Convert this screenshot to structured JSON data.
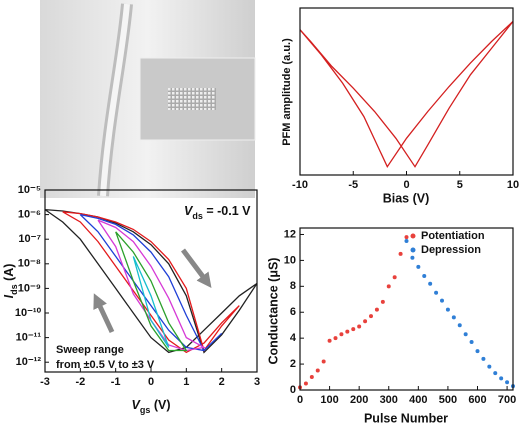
{
  "chart_data": [
    {
      "type": "line",
      "xlabel": "Bias (V)",
      "ylabel": "PFM amplitude (a.u.)",
      "xlim": [
        -10,
        10
      ],
      "xticks": [
        -10,
        -5,
        0,
        5,
        10
      ],
      "ylim": [
        0,
        1
      ],
      "series": [
        {
          "color": "#d42020",
          "x": [
            -10,
            -8,
            -6,
            -4,
            -1.8,
            0,
            2,
            4,
            6,
            8,
            10,
            8,
            6,
            4,
            2,
            0.8,
            -1,
            -3,
            -5,
            -7,
            -9,
            -10
          ],
          "values": [
            0.87,
            0.72,
            0.55,
            0.35,
            0.05,
            0.22,
            0.38,
            0.53,
            0.67,
            0.8,
            0.92,
            0.76,
            0.6,
            0.4,
            0.18,
            0.05,
            0.22,
            0.38,
            0.52,
            0.65,
            0.8,
            0.87
          ]
        }
      ]
    },
    {
      "type": "line",
      "log_y": true,
      "xlabel": {
        "symbol": "V",
        "subscript": "gs",
        "unit": " (V)"
      },
      "ylabel": {
        "symbol": "I",
        "subscript": "ds",
        "unit": " (A)"
      },
      "annotation": {
        "symbol": "V",
        "subscript": "ds",
        "text": " = -0.1 V"
      },
      "note": [
        "Sweep range",
        "from ±0.5 V to ±3 V"
      ],
      "xlim": [
        -3,
        3
      ],
      "xticks": [
        -3,
        -2,
        -1,
        0,
        1,
        2,
        3
      ],
      "ylim": [
        4e-13,
        1e-05
      ],
      "yticks": [
        {
          "value": 1e-05,
          "label": "10⁻⁵"
        },
        {
          "value": 1e-06,
          "label": "10⁻⁶"
        },
        {
          "value": 1e-07,
          "label": "10⁻⁷"
        },
        {
          "value": 1e-08,
          "label": "10⁻⁸"
        },
        {
          "value": 1e-09,
          "label": "10⁻⁹"
        },
        {
          "value": 1e-10,
          "label": "10⁻¹⁰"
        },
        {
          "value": 1e-11,
          "label": "10⁻¹¹"
        },
        {
          "value": 1e-12,
          "label": "10⁻¹²"
        }
      ],
      "series": [
        {
          "color": "#222222",
          "x": [
            -3,
            -2.5,
            -2,
            -1.5,
            -1,
            -0.5,
            0,
            0.5,
            1,
            1.5,
            2,
            2.5,
            3,
            2.5,
            2,
            1.5,
            1,
            0.5,
            0,
            -0.5,
            -1,
            -1.5,
            -2,
            -2.5,
            -3
          ],
          "values": [
            1.6e-06,
            1.4e-06,
            1.1e-06,
            8e-07,
            4.5e-07,
            2e-07,
            6e-08,
            1e-08,
            5e-10,
            2.5e-12,
            1.3e-11,
            1.3e-10,
            1.6e-09,
            5e-10,
            1e-10,
            2e-11,
            4e-12,
            2.5e-12,
            1e-11,
            1e-10,
            1e-09,
            1e-08,
            1e-07,
            5e-07,
            1.6e-06
          ]
        },
        {
          "color": "#e31a1c",
          "x": [
            -2.5,
            -2,
            -1.5,
            -1,
            -0.5,
            0,
            0.5,
            1,
            1.5,
            2,
            2.5,
            2,
            1.5,
            1,
            0.5,
            0,
            -0.5,
            -1,
            -1.5,
            -2,
            -2.5
          ],
          "values": [
            1.3e-06,
            1.1e-06,
            8e-07,
            5e-07,
            2.5e-07,
            8e-08,
            1.5e-08,
            1e-09,
            3e-12,
            3e-11,
            2e-10,
            4e-11,
            6e-12,
            2.5e-12,
            8e-12,
            8e-11,
            8e-10,
            8e-09,
            8e-08,
            5e-07,
            1.3e-06
          ]
        },
        {
          "color": "#1f3fd6",
          "x": [
            -2,
            -1.5,
            -1,
            -0.5,
            0,
            0.5,
            1,
            1.5,
            2,
            1.5,
            1,
            0.5,
            0,
            -0.5,
            -1,
            -1.5,
            -2
          ],
          "values": [
            1e-06,
            7e-07,
            4e-07,
            1.5e-07,
            3e-08,
            3e-09,
            8e-11,
            3e-12,
            1.5e-11,
            3e-12,
            4e-12,
            2e-11,
            2e-10,
            2e-09,
            2e-08,
            2e-07,
            1e-06
          ]
        },
        {
          "color": "#d63ad6",
          "x": [
            -1.5,
            -1,
            -0.5,
            0,
            0.5,
            1,
            1.5,
            1,
            0.5,
            0,
            -0.5,
            -1,
            -1.5
          ],
          "values": [
            6e-07,
            3e-07,
            8e-08,
            8e-09,
            4e-10,
            1e-11,
            4e-12,
            3e-12,
            5e-12,
            5e-11,
            6e-10,
            5e-08,
            6e-07
          ]
        },
        {
          "color": "#2ca02c",
          "x": [
            -1,
            -0.5,
            0,
            0.5,
            1,
            0.5,
            0,
            -0.5,
            -1
          ],
          "values": [
            2e-07,
            3e-08,
            2e-09,
            4e-11,
            3e-12,
            3e-12,
            3e-11,
            2e-09,
            2e-07
          ]
        },
        {
          "color": "#17becf",
          "x": [
            -0.5,
            0,
            0.5,
            0,
            -0.5
          ],
          "values": [
            2e-08,
            5e-10,
            4e-12,
            5e-11,
            2e-08
          ]
        }
      ]
    },
    {
      "type": "scatter",
      "xlabel": "Pulse Number",
      "ylabel": "Conductance (μS)",
      "xlim": [
        0,
        720
      ],
      "xticks": [
        0,
        100,
        200,
        300,
        400,
        500,
        600,
        700
      ],
      "ylim": [
        0,
        12.5
      ],
      "yticks": [
        0,
        2,
        4,
        6,
        8,
        10,
        12
      ],
      "legend": "upper right",
      "series": [
        {
          "name": "Potentiation",
          "color": "#e8413c",
          "x": [
            0,
            20,
            40,
            60,
            80,
            100,
            120,
            140,
            160,
            180,
            200,
            220,
            240,
            260,
            280,
            300,
            320,
            340,
            360
          ],
          "values": [
            0.2,
            0.5,
            1.0,
            1.5,
            2.2,
            3.8,
            4.0,
            4.3,
            4.5,
            4.7,
            4.9,
            5.3,
            5.7,
            6.2,
            6.8,
            8.0,
            8.7,
            10.5,
            11.8
          ]
        },
        {
          "name": "Depression",
          "color": "#2f7fd6",
          "x": [
            360,
            380,
            400,
            420,
            440,
            460,
            480,
            500,
            520,
            540,
            560,
            580,
            600,
            620,
            640,
            660,
            680,
            700,
            720
          ],
          "values": [
            11.5,
            10.2,
            9.5,
            8.8,
            8.2,
            7.5,
            6.9,
            6.2,
            5.6,
            5.0,
            4.3,
            3.7,
            3.0,
            2.4,
            1.8,
            1.3,
            0.9,
            0.6,
            0.3
          ]
        }
      ]
    }
  ]
}
